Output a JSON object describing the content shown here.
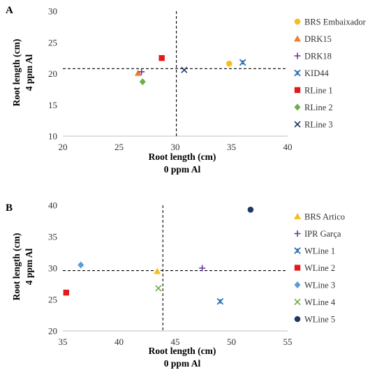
{
  "chart_data": [
    {
      "panel": "A",
      "type": "scatter",
      "xlabel": [
        "Root length (cm)",
        "0 ppm Al"
      ],
      "ylabel": [
        "Root length (cm)",
        "4 ppm Al"
      ],
      "xlim": [
        20,
        40
      ],
      "ylim": [
        10,
        30
      ],
      "xticks": [
        "20",
        "25",
        "30",
        "35",
        "40"
      ],
      "yticks": [
        "10",
        "15",
        "20",
        "25",
        "30"
      ],
      "grid": false,
      "legend": "right",
      "ref_x": 30.1,
      "ref_y": 20.8,
      "series": [
        {
          "name": "BRS Embaixador",
          "marker": "circle",
          "color": "#F5BE1E",
          "x": 34.8,
          "y": 21.6
        },
        {
          "name": "DRK15",
          "marker": "triangle",
          "color": "#ED7D31",
          "x": 26.7,
          "y": 20.1
        },
        {
          "name": "DRK18",
          "marker": "plus",
          "color": "#7030A0",
          "x": 27.0,
          "y": 20.3
        },
        {
          "name": "KID44",
          "marker": "starx",
          "color": "#2E75B6",
          "x": 36.0,
          "y": 21.8
        },
        {
          "name": "RLine 1",
          "marker": "square",
          "color": "#E31A1C",
          "x": 28.8,
          "y": 22.5
        },
        {
          "name": "RLine 2",
          "marker": "diamond",
          "color": "#70AD47",
          "x": 27.1,
          "y": 18.7
        },
        {
          "name": "RLine 3",
          "marker": "x",
          "color": "#1F3864",
          "x": 30.8,
          "y": 20.6
        }
      ]
    },
    {
      "panel": "B",
      "type": "scatter",
      "xlabel": [
        "Root length (cm)",
        "0 ppm Al"
      ],
      "ylabel": [
        "Root length (cm)",
        "4 ppm Al"
      ],
      "xlim": [
        35,
        55
      ],
      "ylim": [
        20,
        40
      ],
      "xticks": [
        "35",
        "40",
        "45",
        "50",
        "55"
      ],
      "yticks": [
        "20",
        "25",
        "30",
        "35",
        "40"
      ],
      "grid": false,
      "legend": "right",
      "ref_x": 43.9,
      "ref_y": 29.6,
      "series": [
        {
          "name": "BRS Artico",
          "marker": "triangle",
          "color": "#F5BE1E",
          "x": 43.4,
          "y": 29.5
        },
        {
          "name": "IPR Garça",
          "marker": "plus",
          "color": "#7030A0",
          "x": 47.4,
          "y": 30.0
        },
        {
          "name": "WLine 1",
          "marker": "starx",
          "color": "#2E75B6",
          "x": 49.0,
          "y": 24.7
        },
        {
          "name": "WLine 2",
          "marker": "square",
          "color": "#E31A1C",
          "x": 35.3,
          "y": 26.1
        },
        {
          "name": "WLine 3",
          "marker": "diamond",
          "color": "#5B9BD5",
          "x": 36.6,
          "y": 30.5
        },
        {
          "name": "WLine 4",
          "marker": "x",
          "color": "#70AD47",
          "x": 43.5,
          "y": 26.8
        },
        {
          "name": "WLine 5",
          "marker": "circle",
          "color": "#1F3864",
          "x": 51.7,
          "y": 39.3
        }
      ]
    }
  ]
}
